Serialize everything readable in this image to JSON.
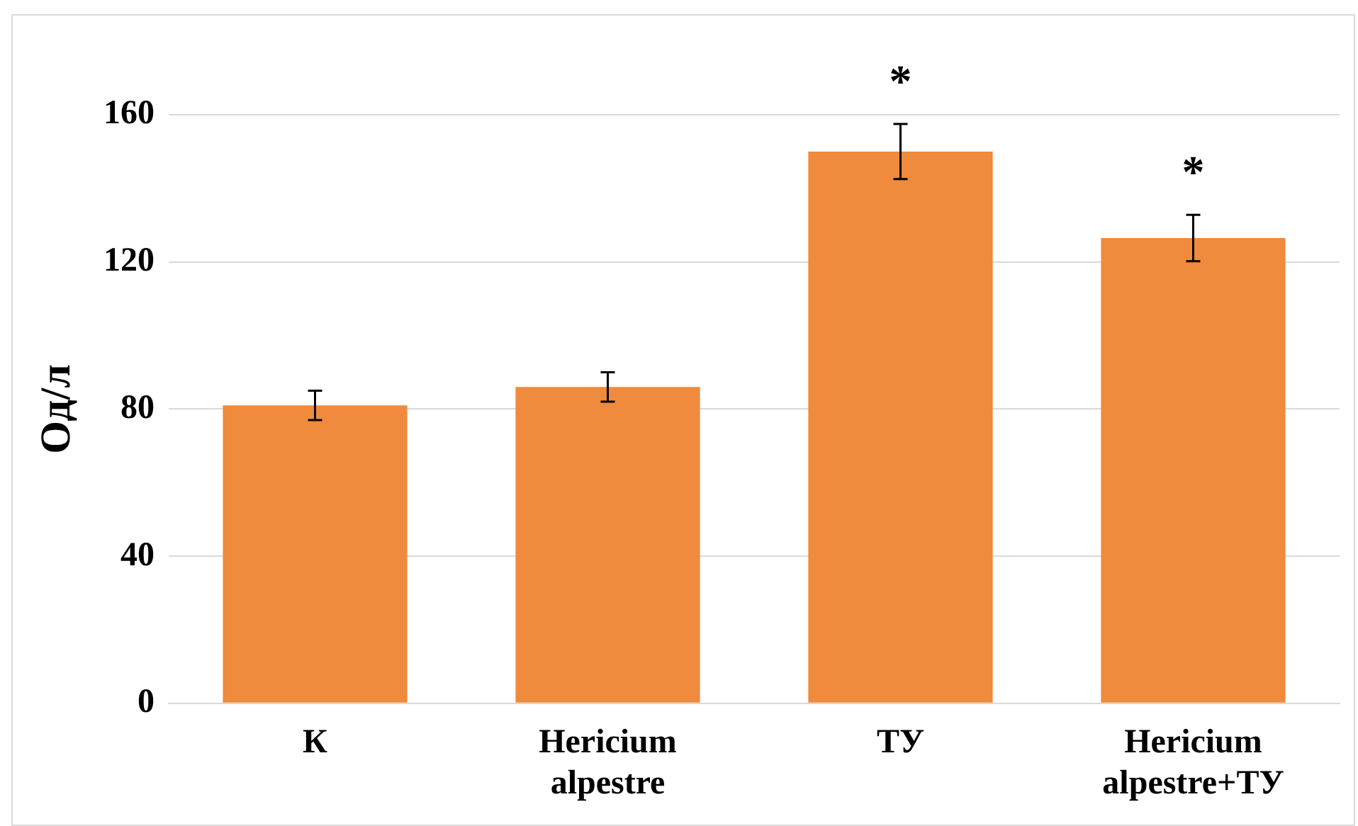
{
  "chart_data": {
    "type": "bar",
    "ylabel": "Од/л",
    "categories": [
      "К",
      "Hericium alpestre",
      "ТУ",
      "Hericium alpestre+ТУ"
    ],
    "values": [
      81,
      86,
      150,
      126.5
    ],
    "errors": [
      4,
      4,
      7.5,
      6.3
    ],
    "color": "#f08a3c",
    "ylim": [
      0,
      160
    ],
    "yticks": [
      0,
      40,
      80,
      120,
      160
    ],
    "grid": "y",
    "legend": false,
    "annotations": [
      "*",
      "*"
    ]
  }
}
